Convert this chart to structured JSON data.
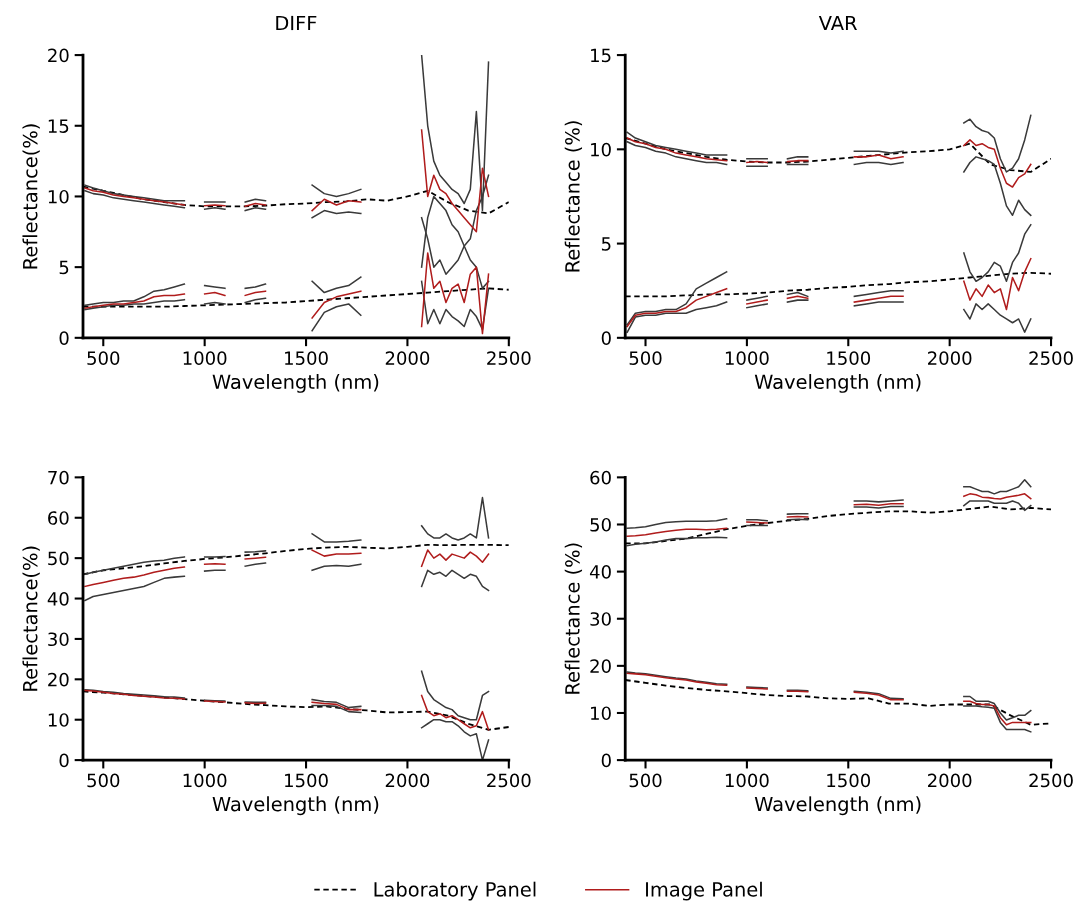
{
  "chart_data": [
    {
      "type": "line",
      "title": "DIFF",
      "xlabel": "Wavelength (nm)",
      "ylabel": "Reflectance(%)",
      "xlim": [
        400,
        2500
      ],
      "xticks": [
        500,
        1000,
        1500,
        2000,
        2500
      ],
      "ylim": [
        0,
        20
      ],
      "yticks": [
        0,
        5,
        10,
        15,
        20
      ],
      "grid": false,
      "legend": false,
      "x": [
        410,
        450,
        500,
        550,
        600,
        650,
        700,
        750,
        800,
        850,
        900,
        950,
        1000,
        1050,
        1100,
        1150,
        1200,
        1250,
        1300,
        1400,
        1530,
        1590,
        1650,
        1710,
        1770,
        1900,
        2070,
        2100,
        2130,
        2160,
        2190,
        2220,
        2250,
        2280,
        2310,
        2340,
        2370,
        2400
      ],
      "series": [
        {
          "color": "#000000",
          "line_style": "dashed",
          "x": [
            400,
            500,
            600,
            700,
            800,
            900,
            1000,
            1100,
            1200,
            1300,
            1400,
            1500,
            1600,
            1700,
            1800,
            1900,
            2000,
            2100,
            2200,
            2300,
            2400,
            2500
          ],
          "values": [
            10.7,
            10.4,
            10.1,
            9.8,
            9.6,
            9.4,
            9.3,
            9.3,
            9.3,
            9.35,
            9.45,
            9.5,
            9.6,
            9.65,
            9.8,
            9.7,
            10.0,
            10.4,
            9.6,
            9.0,
            8.8,
            9.6
          ]
        },
        {
          "color": "#000000",
          "line_style": "dashed",
          "x": [
            400,
            500,
            600,
            700,
            800,
            900,
            1000,
            1100,
            1200,
            1300,
            1400,
            1500,
            1600,
            1700,
            1800,
            1900,
            2000,
            2100,
            2200,
            2300,
            2400,
            2500
          ],
          "values": [
            2.2,
            2.2,
            2.2,
            2.2,
            2.2,
            2.25,
            2.3,
            2.35,
            2.4,
            2.45,
            2.5,
            2.6,
            2.7,
            2.8,
            2.9,
            3.0,
            3.1,
            3.2,
            3.3,
            3.4,
            3.5,
            3.4
          ]
        },
        {
          "color": "#3a3a3a",
          "values": [
            10.8,
            10.6,
            10.4,
            10.2,
            10.1,
            10.0,
            9.9,
            9.8,
            9.7,
            9.7,
            9.7,
            null,
            9.6,
            9.6,
            9.6,
            null,
            9.6,
            9.8,
            9.7,
            null,
            10.8,
            10.2,
            10.0,
            10.2,
            10.5,
            null,
            20.0,
            15.0,
            12.5,
            11.5,
            11.0,
            10.5,
            10.2,
            9.5,
            10.5,
            16.0,
            9.0,
            19.5
          ]
        },
        {
          "color": "#3a3a3a",
          "values": [
            10.4,
            10.2,
            10.1,
            9.9,
            9.8,
            9.7,
            9.6,
            9.5,
            9.4,
            9.3,
            9.2,
            null,
            9.1,
            9.2,
            9.1,
            null,
            9.0,
            9.2,
            9.1,
            null,
            8.5,
            9.0,
            8.8,
            8.9,
            8.8,
            null,
            5.0,
            8.5,
            10.0,
            9.5,
            9.0,
            8.0,
            7.5,
            6.5,
            5.5,
            5.0,
            3.5,
            4.0
          ]
        },
        {
          "color": "#3a3a3a",
          "values": [
            2.3,
            2.4,
            2.5,
            2.5,
            2.6,
            2.6,
            2.9,
            3.3,
            3.4,
            3.6,
            3.8,
            null,
            3.7,
            3.6,
            3.5,
            null,
            3.5,
            3.6,
            3.8,
            null,
            4.0,
            3.2,
            3.5,
            3.7,
            4.3,
            null,
            8.5,
            7.0,
            5.0,
            5.5,
            4.5,
            5.0,
            5.5,
            6.5,
            7.0,
            9.0,
            10.0,
            11.5
          ]
        },
        {
          "color": "#3a3a3a",
          "values": [
            2.0,
            2.1,
            2.2,
            2.3,
            2.3,
            2.4,
            2.4,
            2.5,
            2.6,
            2.6,
            2.7,
            null,
            2.4,
            2.5,
            2.4,
            null,
            2.5,
            2.7,
            2.8,
            null,
            0.5,
            1.8,
            2.2,
            2.4,
            1.6,
            null,
            4.0,
            1.0,
            2.0,
            1.0,
            2.0,
            1.5,
            1.2,
            0.8,
            2.0,
            1.5,
            0.6,
            3.5
          ]
        },
        {
          "color": "#b01c1c",
          "values": [
            10.6,
            10.4,
            10.3,
            10.1,
            10.0,
            9.9,
            9.8,
            9.7,
            9.6,
            9.5,
            9.4,
            null,
            9.35,
            9.4,
            9.35,
            null,
            9.3,
            9.5,
            9.4,
            null,
            9.0,
            9.8,
            9.4,
            9.7,
            9.6,
            null,
            14.7,
            10.0,
            11.5,
            10.5,
            10.2,
            9.5,
            9.0,
            8.5,
            8.0,
            7.5,
            12.0,
            10.0
          ]
        },
        {
          "color": "#b01c1c",
          "values": [
            2.1,
            2.2,
            2.3,
            2.4,
            2.4,
            2.5,
            2.6,
            2.9,
            3.0,
            3.0,
            3.1,
            null,
            3.1,
            3.2,
            3.0,
            null,
            3.0,
            3.2,
            3.3,
            null,
            1.4,
            2.5,
            2.9,
            3.1,
            3.3,
            null,
            0.8,
            6.0,
            3.5,
            4.0,
            2.5,
            3.5,
            3.8,
            2.5,
            4.5,
            5.0,
            0.3,
            4.5
          ]
        }
      ]
    },
    {
      "type": "line",
      "title": "VAR",
      "xlabel": "Wavelength (nm)",
      "ylabel": "Reflectance (%)",
      "xlim": [
        400,
        2500
      ],
      "xticks": [
        500,
        1000,
        1500,
        2000,
        2500
      ],
      "ylim": [
        0,
        15
      ],
      "yticks": [
        0,
        5,
        10,
        15
      ],
      "grid": false,
      "legend": false,
      "x": [
        410,
        450,
        500,
        550,
        600,
        650,
        700,
        750,
        800,
        850,
        900,
        950,
        1000,
        1050,
        1100,
        1150,
        1200,
        1250,
        1300,
        1400,
        1530,
        1590,
        1650,
        1710,
        1770,
        1900,
        2070,
        2100,
        2130,
        2160,
        2190,
        2220,
        2250,
        2280,
        2310,
        2340,
        2370,
        2400
      ],
      "series": [
        {
          "color": "#000000",
          "line_style": "dashed",
          "x": [
            400,
            500,
            600,
            700,
            800,
            900,
            1000,
            1100,
            1200,
            1300,
            1400,
            1500,
            1600,
            1700,
            1800,
            1900,
            2000,
            2100,
            2200,
            2300,
            2400,
            2500
          ],
          "values": [
            10.6,
            10.3,
            10.0,
            9.8,
            9.6,
            9.45,
            9.35,
            9.3,
            9.3,
            9.35,
            9.45,
            9.55,
            9.65,
            9.75,
            9.85,
            9.9,
            10.0,
            10.3,
            9.2,
            8.9,
            8.8,
            9.5
          ]
        },
        {
          "color": "#000000",
          "line_style": "dashed",
          "x": [
            400,
            500,
            600,
            700,
            800,
            900,
            1000,
            1100,
            1200,
            1300,
            1400,
            1500,
            1600,
            1700,
            1800,
            1900,
            2000,
            2100,
            2200,
            2300,
            2400,
            2500
          ],
          "values": [
            2.2,
            2.2,
            2.2,
            2.25,
            2.3,
            2.3,
            2.35,
            2.4,
            2.5,
            2.55,
            2.65,
            2.7,
            2.8,
            2.85,
            2.95,
            3.0,
            3.1,
            3.2,
            3.3,
            3.4,
            3.45,
            3.4
          ]
        },
        {
          "color": "#3a3a3a",
          "values": [
            10.9,
            10.6,
            10.4,
            10.2,
            10.1,
            10.0,
            9.9,
            9.8,
            9.7,
            9.7,
            9.7,
            null,
            9.5,
            9.5,
            9.5,
            null,
            9.5,
            9.6,
            9.6,
            null,
            9.9,
            9.9,
            9.9,
            9.8,
            9.9,
            null,
            11.4,
            11.6,
            11.2,
            11.0,
            10.9,
            10.6,
            9.5,
            8.8,
            9.0,
            9.5,
            10.5,
            11.8
          ]
        },
        {
          "color": "#3a3a3a",
          "values": [
            10.4,
            10.2,
            10.1,
            9.9,
            9.8,
            9.6,
            9.5,
            9.4,
            9.3,
            9.3,
            9.2,
            null,
            9.1,
            9.1,
            9.1,
            null,
            9.2,
            9.2,
            9.2,
            null,
            9.2,
            9.3,
            9.3,
            9.2,
            9.3,
            null,
            8.8,
            9.3,
            9.6,
            9.5,
            9.4,
            9.2,
            8.2,
            7.0,
            6.5,
            7.3,
            6.8,
            6.5
          ]
        },
        {
          "color": "#3a3a3a",
          "values": [
            0.7,
            1.3,
            1.4,
            1.4,
            1.5,
            1.5,
            1.8,
            2.6,
            2.9,
            3.2,
            3.5,
            null,
            2.0,
            2.1,
            2.2,
            null,
            2.3,
            2.4,
            2.2,
            null,
            2.2,
            2.3,
            2.4,
            2.5,
            2.5,
            null,
            4.5,
            3.5,
            3.0,
            3.2,
            3.5,
            4.0,
            3.8,
            3.0,
            4.0,
            4.5,
            5.5,
            6.0
          ]
        },
        {
          "color": "#3a3a3a",
          "values": [
            0.3,
            1.1,
            1.2,
            1.2,
            1.3,
            1.3,
            1.3,
            1.5,
            1.6,
            1.7,
            1.9,
            null,
            1.6,
            1.7,
            1.8,
            null,
            1.9,
            2.0,
            2.0,
            null,
            1.7,
            1.8,
            1.9,
            1.9,
            1.9,
            null,
            1.5,
            1.0,
            1.8,
            1.5,
            1.8,
            1.5,
            1.2,
            1.0,
            0.8,
            1.0,
            0.3,
            1.0
          ]
        },
        {
          "color": "#b01c1c",
          "values": [
            10.6,
            10.4,
            10.3,
            10.1,
            10.0,
            9.8,
            9.7,
            9.6,
            9.5,
            9.45,
            9.4,
            null,
            9.3,
            9.35,
            9.3,
            null,
            9.35,
            9.4,
            9.4,
            null,
            9.6,
            9.6,
            9.7,
            9.5,
            9.6,
            null,
            10.2,
            10.5,
            10.2,
            10.3,
            10.1,
            10.0,
            9.0,
            8.2,
            8.0,
            8.5,
            8.7,
            9.2
          ]
        },
        {
          "color": "#b01c1c",
          "values": [
            0.6,
            1.2,
            1.3,
            1.3,
            1.4,
            1.4,
            1.6,
            2.0,
            2.2,
            2.4,
            2.6,
            null,
            1.8,
            1.9,
            2.0,
            null,
            2.1,
            2.2,
            2.1,
            null,
            1.9,
            2.0,
            2.1,
            2.2,
            2.2,
            null,
            3.0,
            2.0,
            2.6,
            2.2,
            2.8,
            2.4,
            2.6,
            1.5,
            3.2,
            2.5,
            3.5,
            4.2
          ]
        }
      ]
    },
    {
      "type": "line",
      "xlabel": "Wavelength (nm)",
      "ylabel": "Reflectance(%)",
      "xlim": [
        400,
        2500
      ],
      "xticks": [
        500,
        1000,
        1500,
        2000,
        2500
      ],
      "ylim": [
        0,
        70
      ],
      "yticks": [
        0,
        10,
        20,
        30,
        40,
        50,
        60,
        70
      ],
      "grid": false,
      "legend": false,
      "x": [
        410,
        450,
        500,
        550,
        600,
        650,
        700,
        750,
        800,
        850,
        900,
        950,
        1000,
        1050,
        1100,
        1150,
        1200,
        1250,
        1300,
        1400,
        1530,
        1590,
        1650,
        1710,
        1770,
        1900,
        2070,
        2100,
        2130,
        2160,
        2190,
        2220,
        2250,
        2280,
        2310,
        2340,
        2370,
        2400
      ],
      "series": [
        {
          "color": "#000000",
          "line_style": "dashed",
          "x": [
            400,
            500,
            600,
            700,
            800,
            900,
            1000,
            1100,
            1200,
            1300,
            1400,
            1500,
            1600,
            1700,
            1800,
            1900,
            2000,
            2100,
            2200,
            2300,
            2400,
            2500
          ],
          "values": [
            46,
            47,
            47.5,
            48,
            48.7,
            49.3,
            49.8,
            50.2,
            50.7,
            51.2,
            51.8,
            52.3,
            52.6,
            52.8,
            52.6,
            52.4,
            52.8,
            53.3,
            53.2,
            53.3,
            53.3,
            53.2
          ]
        },
        {
          "color": "#000000",
          "line_style": "dashed",
          "x": [
            400,
            500,
            600,
            700,
            800,
            900,
            1000,
            1100,
            1200,
            1300,
            1400,
            1500,
            1600,
            1700,
            1800,
            1900,
            2000,
            2100,
            2200,
            2300,
            2400,
            2500
          ],
          "values": [
            17,
            16.7,
            16.3,
            15.9,
            15.5,
            15.1,
            14.7,
            14.3,
            13.9,
            13.6,
            13.3,
            13.1,
            13.3,
            12.7,
            12.3,
            11.8,
            11.9,
            12.0,
            11.0,
            9.0,
            7.5,
            8.2
          ]
        },
        {
          "color": "#3a3a3a",
          "values": [
            46,
            46.5,
            47,
            47.5,
            48,
            48.5,
            49,
            49.3,
            49.5,
            50,
            50.3,
            null,
            50.3,
            50.3,
            50.4,
            null,
            51.5,
            51.6,
            51.8,
            null,
            56,
            54,
            54,
            54.2,
            54.5,
            null,
            58,
            56,
            55,
            55,
            56,
            55,
            54.5,
            55,
            56,
            55,
            65,
            55
          ]
        },
        {
          "color": "#3a3a3a",
          "values": [
            39.5,
            40.5,
            41,
            41.5,
            42,
            42.5,
            43,
            44,
            45,
            45.3,
            45.5,
            null,
            46.8,
            47,
            47,
            null,
            48,
            48.5,
            48.8,
            null,
            47,
            48,
            48.2,
            48,
            48.5,
            null,
            43,
            47,
            46,
            46.5,
            45.5,
            47,
            46,
            45,
            46,
            45.5,
            43,
            42
          ]
        },
        {
          "color": "#3a3a3a",
          "values": [
            17.4,
            17.3,
            17,
            16.8,
            16.5,
            16.3,
            16.1,
            15.9,
            15.7,
            15.6,
            15.4,
            null,
            14.8,
            14.7,
            14.6,
            null,
            14.4,
            14.3,
            14.3,
            null,
            15,
            14.5,
            14.3,
            13,
            13.3,
            null,
            22,
            17,
            15,
            14,
            13,
            12.5,
            11,
            10.5,
            10,
            10,
            16,
            17
          ]
        },
        {
          "color": "#3a3a3a",
          "values": [
            null,
            null,
            null,
            null,
            null,
            null,
            null,
            null,
            null,
            null,
            null,
            null,
            null,
            null,
            null,
            null,
            null,
            null,
            null,
            null,
            13.5,
            13.5,
            13.3,
            12,
            11.8,
            null,
            8,
            9,
            10,
            10,
            9.5,
            9.5,
            8.5,
            7,
            6,
            6.5,
            0,
            5
          ]
        },
        {
          "color": "#b01c1c",
          "values": [
            43,
            43.5,
            44,
            44.5,
            45,
            45.3,
            45.8,
            46.5,
            47,
            47.5,
            47.8,
            null,
            48.5,
            48.6,
            48.5,
            null,
            49.8,
            50,
            50.2,
            null,
            52,
            50.5,
            51,
            51,
            51.2,
            null,
            48,
            52,
            50,
            51,
            49.5,
            51,
            50.5,
            50,
            51.5,
            50.5,
            49,
            51
          ]
        },
        {
          "color": "#b01c1c",
          "values": [
            17.2,
            17.1,
            16.8,
            16.5,
            16.3,
            16.0,
            15.8,
            15.6,
            15.4,
            15.3,
            15.1,
            null,
            14.6,
            14.5,
            14.4,
            null,
            14.2,
            14.0,
            14.1,
            null,
            14.3,
            14.0,
            13.8,
            12.5,
            12.5,
            null,
            16,
            12,
            11,
            11.5,
            10.5,
            11,
            10,
            9,
            8,
            8.5,
            12,
            7.5
          ]
        }
      ]
    },
    {
      "type": "line",
      "xlabel": "Wavelength (nm)",
      "ylabel": "Reflectance (%)",
      "xlim": [
        400,
        2500
      ],
      "xticks": [
        500,
        1000,
        1500,
        2000,
        2500
      ],
      "ylim": [
        0,
        60
      ],
      "yticks": [
        0,
        10,
        20,
        30,
        40,
        50,
        60
      ],
      "grid": false,
      "legend": "bottom",
      "x": [
        410,
        450,
        500,
        550,
        600,
        650,
        700,
        750,
        800,
        850,
        900,
        950,
        1000,
        1050,
        1100,
        1150,
        1200,
        1250,
        1300,
        1400,
        1530,
        1590,
        1650,
        1710,
        1770,
        1900,
        2070,
        2100,
        2130,
        2160,
        2190,
        2220,
        2250,
        2280,
        2310,
        2340,
        2370,
        2400
      ],
      "series": [
        {
          "name": "Laboratory Panel",
          "color": "#000000",
          "line_style": "dashed",
          "x": [
            400,
            500,
            600,
            700,
            800,
            900,
            1000,
            1100,
            1200,
            1300,
            1400,
            1500,
            1600,
            1700,
            1800,
            1900,
            2000,
            2100,
            2200,
            2300,
            2400,
            2500
          ],
          "values": [
            46,
            46,
            46.5,
            47,
            48,
            49,
            49.7,
            50.3,
            50.8,
            51.2,
            51.8,
            52.2,
            52.5,
            52.8,
            52.8,
            52.5,
            52.8,
            53.3,
            53.8,
            53.2,
            53.5,
            53.2
          ]
        },
        {
          "color": "#000000",
          "line_style": "dashed",
          "x": [
            400,
            500,
            600,
            700,
            800,
            900,
            1000,
            1100,
            1200,
            1300,
            1400,
            1500,
            1600,
            1700,
            1800,
            1900,
            2000,
            2100,
            2200,
            2300,
            2400,
            2500
          ],
          "values": [
            17,
            16.4,
            15.8,
            15.3,
            14.9,
            14.6,
            14.2,
            13.8,
            13.6,
            13.5,
            13.1,
            13.0,
            13.1,
            12.0,
            12.0,
            11.5,
            11.8,
            11.8,
            11.8,
            9.5,
            7.5,
            7.8
          ]
        },
        {
          "color": "#3a3a3a",
          "values": [
            49.2,
            49.3,
            49.5,
            50,
            50.4,
            50.6,
            50.7,
            50.7,
            50.7,
            50.8,
            51.2,
            null,
            51,
            51,
            50.8,
            null,
            52.2,
            52.3,
            52.3,
            null,
            55,
            55,
            54.8,
            55,
            55.2,
            null,
            58,
            58,
            57.5,
            57,
            57,
            56.5,
            57,
            57,
            57.5,
            58,
            59.5,
            58
          ]
        },
        {
          "color": "#3a3a3a",
          "values": [
            45.5,
            45.8,
            46,
            46.3,
            46.7,
            47,
            47,
            47.2,
            47.2,
            47.3,
            47.2,
            null,
            49.8,
            49.8,
            49.8,
            null,
            51,
            51.1,
            51,
            null,
            53.7,
            53.7,
            53.5,
            53.8,
            53.8,
            null,
            54,
            55,
            55,
            55,
            55,
            54.5,
            54.5,
            54.5,
            55,
            54.5,
            53,
            54
          ]
        },
        {
          "color": "#3a3a3a",
          "values": [
            18.7,
            18.5,
            18.3,
            18.0,
            17.7,
            17.4,
            17.2,
            16.8,
            16.5,
            16.2,
            16.1,
            null,
            15.5,
            15.4,
            15.3,
            null,
            14.8,
            14.8,
            14.7,
            null,
            14.6,
            14.4,
            14.1,
            13.1,
            13.0,
            null,
            13.5,
            13.5,
            12.5,
            12.5,
            12.5,
            12,
            10,
            8.5,
            9,
            9.5,
            9.5,
            10.5
          ]
        },
        {
          "color": "#3a3a3a",
          "values": [
            null,
            null,
            null,
            null,
            null,
            null,
            null,
            null,
            null,
            null,
            null,
            null,
            null,
            null,
            null,
            null,
            null,
            null,
            null,
            null,
            null,
            null,
            null,
            null,
            null,
            null,
            11.5,
            11.5,
            11.5,
            11.3,
            11.2,
            11,
            8,
            6.5,
            6.5,
            6.5,
            6.5,
            6.0
          ]
        },
        {
          "name": "Image Panel",
          "color": "#b01c1c",
          "values": [
            47.5,
            47.6,
            47.8,
            48.2,
            48.5,
            48.8,
            49,
            49,
            48.9,
            49,
            49.2,
            null,
            50.5,
            50.4,
            50.3,
            null,
            51.6,
            51.7,
            51.6,
            null,
            54.2,
            54.3,
            54.1,
            54.4,
            54.4,
            null,
            56,
            56.5,
            56.3,
            55.8,
            55.7,
            55.5,
            55.4,
            55.8,
            56,
            56.2,
            56.5,
            55.5
          ]
        },
        {
          "color": "#b01c1c",
          "values": [
            18.4,
            18.3,
            18.1,
            17.8,
            17.5,
            17.2,
            17,
            16.6,
            16.3,
            16.0,
            15.9,
            null,
            15.3,
            15.2,
            15.1,
            null,
            14.6,
            14.6,
            14.5,
            null,
            14.4,
            14.2,
            13.8,
            12.8,
            12.8,
            null,
            12.5,
            12.5,
            12,
            11.8,
            11.8,
            11.5,
            9,
            7.5,
            8.0,
            8.0,
            8.0,
            8.0
          ]
        }
      ]
    }
  ]
}
